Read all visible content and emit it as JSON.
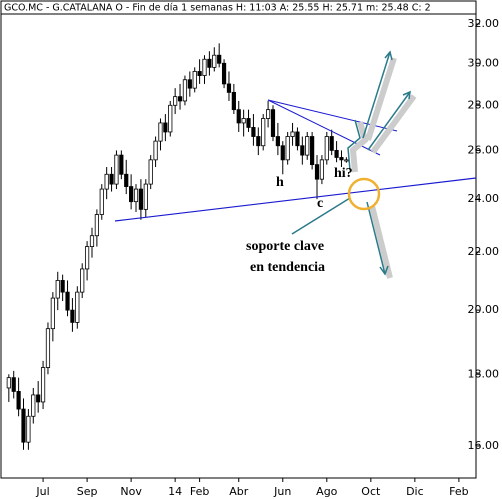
{
  "chart_data": {
    "type": "candlestick",
    "title": "GCO.MC - G.CATALANA O - Fin de día 1 semanas  H: 11:03  A: 25.55  H: 25.71  m: 25.48  C: 2",
    "x": [
      0,
      1,
      2,
      3,
      4,
      5,
      6,
      7,
      8,
      9,
      10,
      11,
      12,
      13,
      14,
      15,
      16,
      17,
      18,
      19,
      20,
      21,
      22,
      23,
      24,
      25,
      26,
      27,
      28,
      29,
      30,
      31,
      32,
      33,
      34,
      35,
      36,
      37,
      38,
      39,
      40,
      41,
      42,
      43,
      44,
      45,
      46,
      47,
      48,
      49,
      50,
      51,
      52,
      53,
      54,
      55,
      56,
      57,
      58,
      59,
      60,
      61,
      62,
      63,
      64,
      65,
      66,
      67,
      68,
      69
    ],
    "open": [
      17.6,
      17.9,
      17.5,
      17.0,
      16.1,
      16.8,
      17.4,
      17.2,
      18.2,
      19.4,
      20.4,
      21.0,
      20.6,
      20.0,
      19.6,
      20.6,
      21.4,
      22.2,
      22.6,
      23.4,
      24.4,
      25.0,
      24.6,
      25.8,
      25.0,
      24.5,
      23.9,
      24.4,
      23.6,
      24.6,
      25.6,
      26.4,
      27.2,
      26.8,
      28.0,
      28.4,
      28.2,
      29.2,
      28.8,
      29.6,
      29.4,
      30.2,
      29.8,
      30.4,
      30.0,
      29.0,
      28.6,
      27.8,
      27.2,
      27.4,
      27.0,
      26.6,
      26.2,
      27.4,
      27.8,
      26.6,
      26.2,
      25.6,
      26.6,
      26.8,
      26.2,
      25.8,
      26.6,
      25.4,
      24.8,
      25.6,
      26.6,
      26.0,
      25.7,
      25.55
    ],
    "high": [
      18.0,
      18.1,
      17.9,
      17.3,
      17.0,
      17.6,
      17.8,
      18.4,
      19.6,
      20.6,
      21.3,
      21.2,
      21.0,
      20.4,
      20.8,
      21.6,
      22.4,
      22.9,
      23.6,
      24.6,
      25.3,
      25.3,
      26.0,
      26.0,
      25.6,
      25.0,
      24.6,
      24.8,
      24.8,
      25.8,
      26.6,
      27.4,
      27.6,
      28.2,
      28.8,
      29.0,
      29.4,
      29.6,
      29.8,
      30.2,
      30.4,
      30.6,
      30.8,
      31.0,
      30.2,
      29.6,
      29.0,
      28.2,
      27.8,
      27.8,
      27.6,
      27.0,
      27.6,
      28.2,
      28.0,
      27.2,
      26.4,
      26.8,
      27.2,
      27.0,
      26.6,
      26.8,
      26.8,
      25.8,
      25.8,
      26.8,
      26.9,
      26.4,
      26.0,
      25.71
    ],
    "low": [
      17.2,
      17.3,
      16.8,
      15.9,
      15.9,
      16.6,
      16.9,
      17.0,
      18.0,
      19.0,
      20.0,
      20.3,
      19.8,
      19.3,
      19.4,
      20.4,
      21.0,
      21.8,
      22.2,
      23.2,
      24.0,
      24.3,
      24.4,
      24.8,
      24.2,
      23.6,
      23.5,
      23.2,
      23.3,
      24.4,
      25.3,
      26.0,
      26.4,
      26.6,
      27.6,
      27.8,
      28.0,
      28.4,
      28.6,
      29.0,
      29.0,
      29.4,
      29.6,
      29.8,
      28.8,
      28.2,
      27.6,
      26.8,
      26.6,
      26.8,
      26.2,
      25.8,
      26.0,
      27.0,
      26.4,
      25.8,
      25.0,
      25.4,
      26.2,
      26.0,
      25.4,
      25.6,
      25.2,
      24.0,
      24.6,
      25.4,
      25.8,
      25.5,
      25.3,
      25.48
    ],
    "close": [
      17.9,
      17.5,
      17.0,
      16.1,
      16.8,
      17.4,
      17.2,
      18.2,
      19.4,
      20.4,
      21.0,
      20.6,
      20.0,
      19.6,
      20.6,
      21.4,
      22.2,
      22.6,
      23.4,
      24.4,
      25.0,
      24.6,
      25.8,
      25.0,
      24.5,
      23.9,
      24.4,
      23.6,
      24.6,
      25.6,
      26.4,
      27.2,
      26.8,
      28.0,
      28.4,
      28.2,
      29.2,
      28.8,
      29.6,
      29.4,
      30.2,
      29.8,
      30.4,
      30.0,
      29.0,
      28.6,
      27.8,
      27.2,
      27.4,
      27.0,
      26.6,
      26.2,
      27.4,
      27.8,
      26.6,
      26.2,
      25.6,
      26.6,
      26.8,
      26.2,
      25.8,
      26.6,
      25.4,
      24.8,
      25.6,
      26.6,
      26.0,
      25.7,
      25.6,
      25.6
    ],
    "up_color": "#ffffff",
    "down_color": "#000000",
    "xlim": [
      -1.6,
      95.5
    ],
    "xticks": [
      {
        "value": 7,
        "label": "Jul"
      },
      {
        "value": 16,
        "label": "Sep"
      },
      {
        "value": 25,
        "label": "Nov"
      },
      {
        "value": 34,
        "label": "14"
      },
      {
        "value": 39,
        "label": "Feb"
      },
      {
        "value": 47,
        "label": "Abr"
      },
      {
        "value": 56,
        "label": "Jun"
      },
      {
        "value": 65,
        "label": "Ago"
      },
      {
        "value": 74,
        "label": "Oct"
      },
      {
        "value": 83,
        "label": "Dic"
      },
      {
        "value": 92,
        "label": "Feb"
      }
    ],
    "ylim": [
      15.18,
      32.53
    ],
    "log_scale": true,
    "yticks": [
      {
        "value": 16,
        "label": "16.00"
      },
      {
        "value": 18,
        "label": "18.00"
      },
      {
        "value": 20,
        "label": "20.00"
      },
      {
        "value": 22,
        "label": "22.00"
      },
      {
        "value": 24,
        "label": "24.00"
      },
      {
        "value": 26,
        "label": "26.00"
      },
      {
        "value": 28,
        "label": "28.00"
      },
      {
        "value": 30,
        "label": "30.00"
      },
      {
        "value": 32,
        "label": "32.00"
      }
    ],
    "annotations": [
      "h",
      "c",
      "hi?",
      "soporte clave",
      "en tendencia"
    ]
  }
}
